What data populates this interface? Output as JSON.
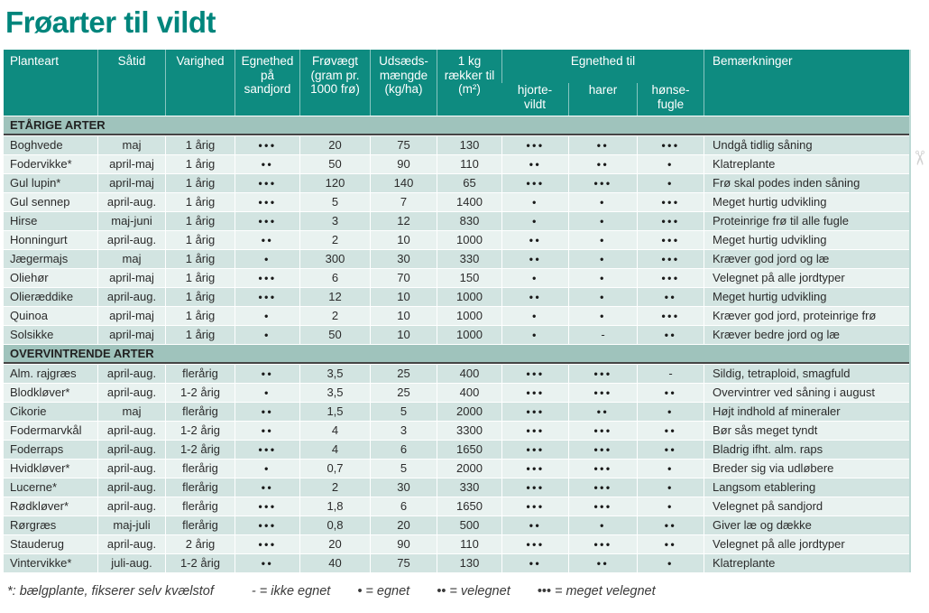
{
  "page": {
    "title": "Frøarter til vildt"
  },
  "theme": {
    "title_teal": "#00857C",
    "header_teal": "#0E8B80",
    "section_bg": "#9FC3BC",
    "row_dark": "#D2E4E1",
    "row_light": "#E9F2F0"
  },
  "icons": {
    "scissors_cut_mark": "✂"
  },
  "table": {
    "header": {
      "planteart": "Planteart",
      "saatid": "Såtid",
      "varighed": "Varighed",
      "sandjord": "Egnethed\npå\nsandjord",
      "froevaegt": "Frøvægt\n(gram pr.\n1000 frø)",
      "udsaed": "Udsæds-\nmængde\n(kg/ha)",
      "raekker": "1 kg\nrækker til\n(m²)",
      "egnethed_til": "Egnethed til",
      "hjortevildt": "hjorte-\nvildt",
      "harer": "harer",
      "hoensefugle": "hønse-\nfugle",
      "bemaerkninger": "Bemærkninger"
    },
    "column_keys": [
      "planteart",
      "saatid",
      "varighed",
      "sandjord",
      "froevaegt",
      "udsaed",
      "raekker",
      "hjortevildt",
      "harer",
      "hoensefugle",
      "bemaerkninger"
    ],
    "sections": [
      {
        "label": "ETÅRIGE ARTER",
        "rows": [
          [
            "Boghvede",
            "maj",
            "1 årig",
            "•••",
            "20",
            "75",
            "130",
            "•••",
            "••",
            "•••",
            "Undgå tidlig såning"
          ],
          [
            "Fodervikke*",
            "april-maj",
            "1 årig",
            "••",
            "50",
            "90",
            "110",
            "••",
            "••",
            "•",
            "Klatreplante"
          ],
          [
            "Gul lupin*",
            "april-maj",
            "1 årig",
            "•••",
            "120",
            "140",
            "65",
            "•••",
            "•••",
            "•",
            "Frø skal podes inden såning"
          ],
          [
            "Gul sennep",
            "april-aug.",
            "1 årig",
            "•••",
            "5",
            "7",
            "1400",
            "•",
            "•",
            "•••",
            "Meget hurtig udvikling"
          ],
          [
            "Hirse",
            "maj-juni",
            "1 årig",
            "•••",
            "3",
            "12",
            "830",
            "•",
            "•",
            "•••",
            "Proteinrige frø til alle fugle"
          ],
          [
            "Honningurt",
            "april-aug.",
            "1 årig",
            "••",
            "2",
            "10",
            "1000",
            "••",
            "•",
            "•••",
            "Meget hurtig udvikling"
          ],
          [
            "Jægermajs",
            "maj",
            "1 årig",
            "•",
            "300",
            "30",
            "330",
            "••",
            "•",
            "•••",
            "Kræver god jord og læ"
          ],
          [
            "Oliehør",
            "april-maj",
            "1 årig",
            "•••",
            "6",
            "70",
            "150",
            "•",
            "•",
            "•••",
            "Velegnet på alle jordtyper"
          ],
          [
            "Olieræddike",
            "april-aug.",
            "1 årig",
            "•••",
            "12",
            "10",
            "1000",
            "••",
            "•",
            "••",
            "Meget hurtig udvikling"
          ],
          [
            "Quinoa",
            "april-maj",
            "1 årig",
            "•",
            "2",
            "10",
            "1000",
            "•",
            "•",
            "•••",
            "Kræver god jord, proteinrige frø"
          ],
          [
            "Solsikke",
            "april-maj",
            "1 årig",
            "•",
            "50",
            "10",
            "1000",
            "•",
            "-",
            "••",
            "Kræver bedre jord og læ"
          ]
        ]
      },
      {
        "label": "OVERVINTRENDE ARTER",
        "rows": [
          [
            "Alm. rajgræs",
            "april-aug.",
            "flerårig",
            "••",
            "3,5",
            "25",
            "400",
            "•••",
            "•••",
            "-",
            "Sildig, tetraploid, smagfuld"
          ],
          [
            "Blodkløver*",
            "april-aug.",
            "1-2 årig",
            "•",
            "3,5",
            "25",
            "400",
            "•••",
            "•••",
            "••",
            "Overvintrer ved såning i august"
          ],
          [
            "Cikorie",
            "maj",
            "flerårig",
            "••",
            "1,5",
            "5",
            "2000",
            "•••",
            "••",
            "•",
            "Højt indhold af mineraler"
          ],
          [
            "Fodermarvkål",
            "april-aug.",
            "1-2 årig",
            "••",
            "4",
            "3",
            "3300",
            "•••",
            "•••",
            "••",
            "Bør sås meget tyndt"
          ],
          [
            "Foderraps",
            "april-aug.",
            "1-2 årig",
            "•••",
            "4",
            "6",
            "1650",
            "•••",
            "•••",
            "••",
            "Bladrig ifht. alm. raps"
          ],
          [
            "Hvidkløver*",
            "april-aug.",
            "flerårig",
            "•",
            "0,7",
            "5",
            "2000",
            "•••",
            "•••",
            "•",
            "Breder sig via udløbere"
          ],
          [
            "Lucerne*",
            "april-aug.",
            "flerårig",
            "••",
            "2",
            "30",
            "330",
            "•••",
            "•••",
            "•",
            "Langsom etablering"
          ],
          [
            "Rødkløver*",
            "april-aug.",
            "flerårig",
            "•••",
            "1,8",
            "6",
            "1650",
            "•••",
            "•••",
            "•",
            "Velegnet på sandjord"
          ],
          [
            "Rørgræs",
            "maj-juli",
            "flerårig",
            "•••",
            "0,8",
            "20",
            "500",
            "••",
            "•",
            "••",
            "Giver læ og dække"
          ],
          [
            "Stauderug",
            "april-aug.",
            "2 årig",
            "•••",
            "20",
            "90",
            "110",
            "•••",
            "•••",
            "••",
            "Velegnet på alle jordtyper"
          ],
          [
            "Vintervikke*",
            "juli-aug.",
            "1-2 årig",
            "••",
            "40",
            "75",
            "130",
            "••",
            "••",
            "•",
            "Klatreplante"
          ]
        ]
      }
    ]
  },
  "legend": {
    "footnote": "*: bælgplante, fikserer selv kvælstof",
    "items": [
      "- = ikke egnet",
      "• = egnet",
      "•• = velegnet",
      "••• = meget velegnet"
    ]
  }
}
